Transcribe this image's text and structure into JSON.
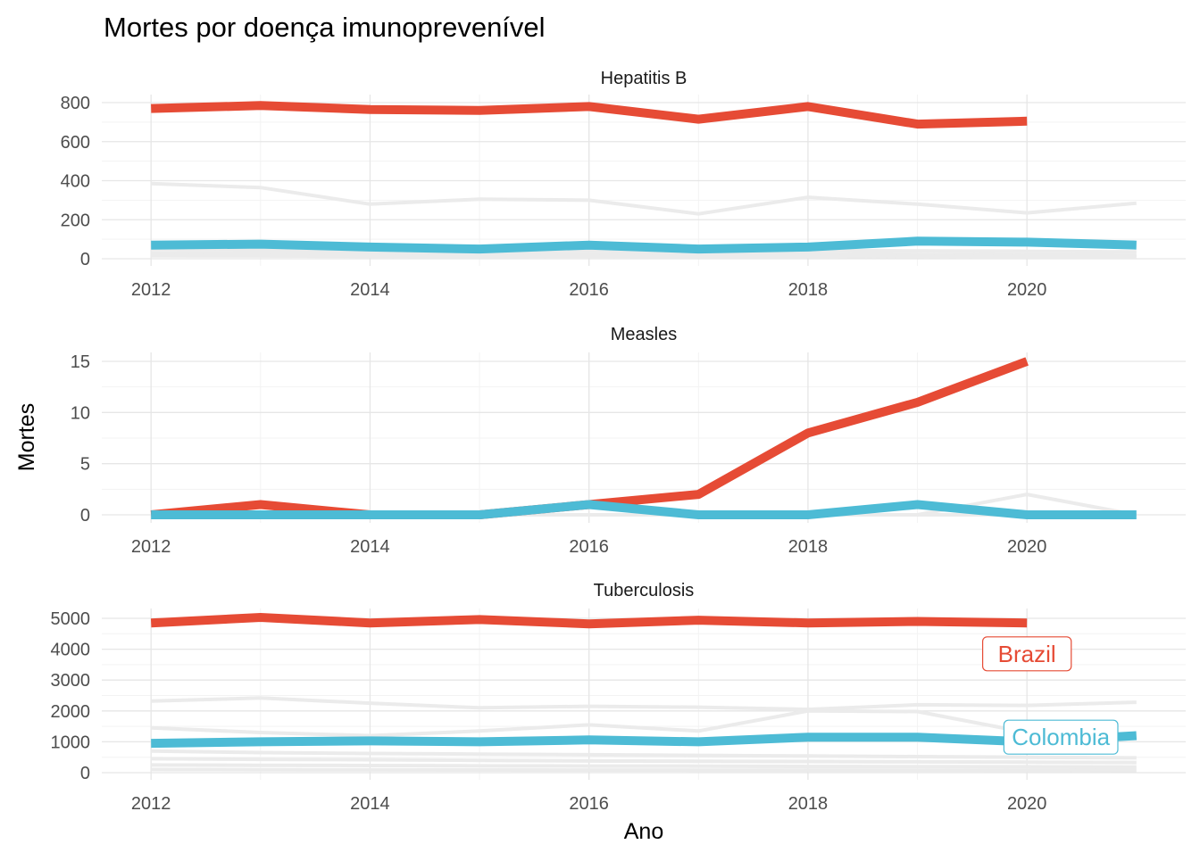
{
  "chart_data": {
    "type": "line",
    "title": "Mortes por doença imunoprevenível",
    "xlabel": "Ano",
    "ylabel": "Mortes",
    "x": [
      2012,
      2013,
      2014,
      2015,
      2016,
      2017,
      2018,
      2019,
      2020,
      2021
    ],
    "x_ticks": [
      "2012",
      "2014",
      "2016",
      "2018",
      "2020"
    ],
    "grid": true,
    "colors": {
      "Brazil": "#E64B35",
      "Colombia": "#4DBBD5",
      "other": "#EBEBEB"
    },
    "labels": [
      {
        "text": "Brazil",
        "series": "Brazil",
        "panel": "Tuberculosis"
      },
      {
        "text": "Colombia",
        "series": "Colombia",
        "panel": "Tuberculosis"
      }
    ],
    "panels": [
      {
        "title": "Hepatitis B",
        "ylim": [
          0,
          800
        ],
        "yticks": [
          0,
          200,
          400,
          600,
          800
        ],
        "series": [
          {
            "name": "Brazil",
            "values": [
              770,
              785,
              765,
              760,
              780,
              715,
              780,
              690,
              705,
              null
            ]
          },
          {
            "name": "Colombia",
            "values": [
              70,
              75,
              60,
              50,
              70,
              50,
              60,
              90,
              85,
              70
            ]
          }
        ],
        "background_series": [
          [
            385,
            365,
            280,
            305,
            300,
            230,
            315,
            280,
            235,
            285
          ],
          [
            50,
            45,
            40,
            42,
            45,
            40,
            42,
            40,
            38,
            35
          ],
          [
            30,
            28,
            25,
            26,
            27,
            24,
            25,
            22,
            20,
            18
          ],
          [
            15,
            14,
            13,
            12,
            13,
            12,
            12,
            11,
            10,
            10
          ]
        ]
      },
      {
        "title": "Measles",
        "ylim": [
          0,
          15
        ],
        "yticks": [
          0,
          5,
          10,
          15
        ],
        "series": [
          {
            "name": "Brazil",
            "values": [
              0,
              1,
              0,
              0,
              1,
              2,
              8,
              11,
              15,
              null
            ]
          },
          {
            "name": "Colombia",
            "values": [
              0,
              0,
              0,
              0,
              1,
              0,
              0,
              1,
              0,
              0
            ]
          }
        ],
        "background_series": [
          [
            0,
            0,
            0,
            0,
            0,
            0,
            0,
            0,
            2,
            0
          ],
          [
            0,
            0,
            0,
            0,
            0,
            0,
            0,
            0,
            0,
            0
          ]
        ]
      },
      {
        "title": "Tuberculosis",
        "ylim": [
          0,
          5000
        ],
        "yticks": [
          0,
          1000,
          2000,
          3000,
          4000,
          5000
        ],
        "series": [
          {
            "name": "Brazil",
            "values": [
              4850,
              5030,
              4850,
              4960,
              4820,
              4940,
              4850,
              4900,
              4850,
              null
            ]
          },
          {
            "name": "Colombia",
            "values": [
              950,
              1000,
              1030,
              1000,
              1060,
              1000,
              1150,
              1150,
              1000,
              1200
            ]
          }
        ],
        "background_series": [
          [
            2320,
            2420,
            2250,
            2100,
            2150,
            2120,
            2050,
            2200,
            2180,
            2280
          ],
          [
            1450,
            1300,
            1200,
            1350,
            1550,
            1350,
            2000,
            1980,
            1300,
            1100
          ],
          [
            700,
            650,
            620,
            600,
            580,
            560,
            540,
            520,
            500,
            480
          ],
          [
            450,
            430,
            420,
            400,
            380,
            370,
            360,
            350,
            340,
            330
          ],
          [
            250,
            240,
            230,
            220,
            215,
            210,
            200,
            195,
            190,
            185
          ],
          [
            100,
            95,
            90,
            88,
            85,
            82,
            80,
            78,
            75,
            72
          ]
        ]
      }
    ]
  }
}
